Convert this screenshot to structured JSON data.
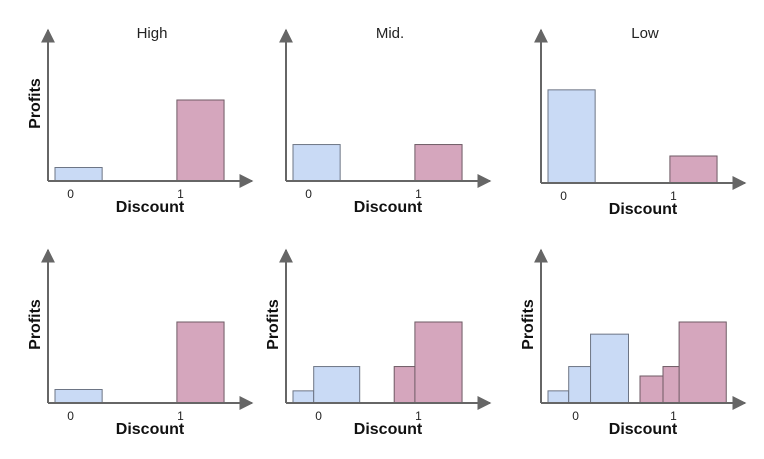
{
  "colors": {
    "blue_fill": "#c9daf5",
    "blue_stroke": "#6d7585",
    "pink_fill": "#d5a6bd",
    "pink_stroke": "#6e5a64",
    "axis": "#666666"
  },
  "chart_data": [
    {
      "type": "bar",
      "title": "High",
      "xlabel": "Discount",
      "ylabel": "Profits",
      "xticks": [
        "0",
        "1"
      ],
      "grid": false,
      "ylim": [
        0,
        10
      ],
      "bars": [
        {
          "group": "0",
          "x": [
            0.0,
            0.41
          ],
          "value": 1.0,
          "color": "blue"
        },
        {
          "group": "1",
          "x": [
            1.06,
            1.47
          ],
          "value": 6.0,
          "color": "pink"
        }
      ]
    },
    {
      "type": "bar",
      "title": "Mid.",
      "xlabel": "Discount",
      "ylabel": "",
      "xticks": [
        "0",
        "1"
      ],
      "grid": false,
      "ylim": [
        0,
        10
      ],
      "bars": [
        {
          "group": "0",
          "x": [
            0.0,
            0.41
          ],
          "value": 2.7,
          "color": "blue"
        },
        {
          "group": "1",
          "x": [
            1.06,
            1.47
          ],
          "value": 2.7,
          "color": "pink"
        }
      ]
    },
    {
      "type": "bar",
      "title": "Low",
      "xlabel": "Discount",
      "ylabel": "",
      "xticks": [
        "0",
        "1"
      ],
      "grid": false,
      "ylim": [
        0,
        10
      ],
      "bars": [
        {
          "group": "0",
          "x": [
            0.0,
            0.41
          ],
          "value": 6.9,
          "color": "blue"
        },
        {
          "group": "1",
          "x": [
            1.06,
            1.47
          ],
          "value": 2.0,
          "color": "pink"
        }
      ]
    },
    {
      "type": "bar",
      "title": "",
      "xlabel": "Discount",
      "ylabel": "Profits",
      "xticks": [
        "0",
        "1"
      ],
      "grid": false,
      "ylim": [
        0,
        10
      ],
      "bars": [
        {
          "group": "0",
          "x": [
            0.0,
            0.41
          ],
          "value": 1.0,
          "color": "blue"
        },
        {
          "group": "1",
          "x": [
            1.06,
            1.47
          ],
          "value": 6.0,
          "color": "pink"
        }
      ]
    },
    {
      "type": "bar",
      "title": "",
      "xlabel": "Discount",
      "ylabel": "Profits",
      "xticks": [
        "0",
        "1"
      ],
      "grid": false,
      "ylim": [
        0,
        10
      ],
      "bars": [
        {
          "group": "0",
          "x": [
            0.0,
            0.18
          ],
          "value": 0.9,
          "color": "blue"
        },
        {
          "group": "0",
          "x": [
            0.18,
            0.58
          ],
          "value": 2.7,
          "color": "blue"
        },
        {
          "group": "1",
          "x": [
            0.88,
            1.27
          ],
          "value": 2.7,
          "color": "pink"
        },
        {
          "group": "1",
          "x": [
            1.06,
            1.47
          ],
          "value": 6.0,
          "color": "pink"
        }
      ]
    },
    {
      "type": "bar",
      "title": "",
      "xlabel": "Discount",
      "ylabel": "Profits",
      "xticks": [
        "0",
        "1"
      ],
      "grid": false,
      "ylim": [
        0,
        10
      ],
      "bars": [
        {
          "group": "0",
          "x": [
            0.0,
            0.18
          ],
          "value": 0.9,
          "color": "blue"
        },
        {
          "group": "0",
          "x": [
            0.18,
            0.37
          ],
          "value": 2.7,
          "color": "blue"
        },
        {
          "group": "0",
          "x": [
            0.37,
            0.7
          ],
          "value": 5.1,
          "color": "blue"
        },
        {
          "group": "1",
          "x": [
            0.8,
            1.14
          ],
          "value": 2.0,
          "color": "pink"
        },
        {
          "group": "1",
          "x": [
            1.0,
            1.4
          ],
          "value": 2.7,
          "color": "pink"
        },
        {
          "group": "1",
          "x": [
            1.14,
            1.55
          ],
          "value": 6.0,
          "color": "pink"
        }
      ]
    }
  ]
}
